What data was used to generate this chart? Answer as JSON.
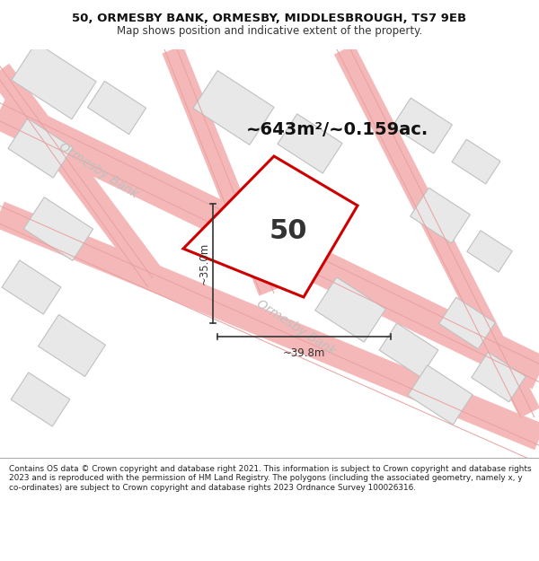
{
  "title_line1": "50, ORMESBY BANK, ORMESBY, MIDDLESBROUGH, TS7 9EB",
  "title_line2": "Map shows position and indicative extent of the property.",
  "footer_text": "Contains OS data © Crown copyright and database right 2021. This information is subject to Crown copyright and database rights 2023 and is reproduced with the permission of HM Land Registry. The polygons (including the associated geometry, namely x, y co-ordinates) are subject to Crown copyright and database rights 2023 Ordnance Survey 100026316.",
  "area_text": "~643m²/~0.159ac.",
  "property_number": "50",
  "dim_width": "~39.8m",
  "dim_height": "~35.0m",
  "map_bg": "#ffffff",
  "road_color": "#f5b8b8",
  "road_edge_color": "#e8a0a0",
  "building_fill": "#e8e8e8",
  "building_stroke": "#c0c0c0",
  "prop_stroke": "#cc0000",
  "prop_fill": "#ffffff",
  "dim_color": "#333333",
  "road_label_color": "#bbbbbb",
  "footer_bg": "#ffffff",
  "header_bg": "#ffffff",
  "area_fontsize": 14,
  "prop_num_fontsize": 22
}
